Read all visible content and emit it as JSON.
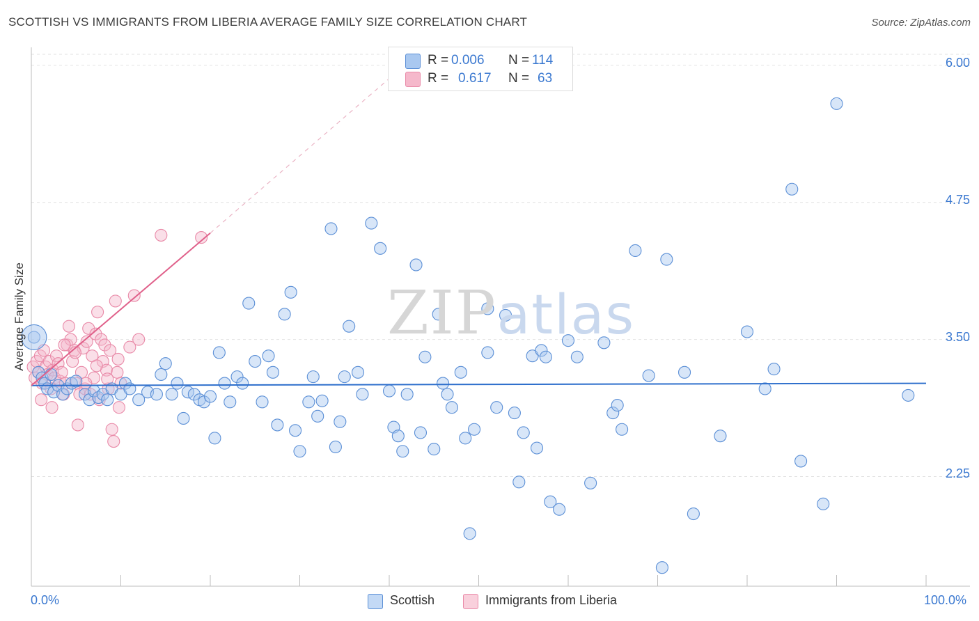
{
  "header": {
    "title": "SCOTTISH VS IMMIGRANTS FROM LIBERIA AVERAGE FAMILY SIZE CORRELATION CHART",
    "source": "Source: ZipAtlas.com"
  },
  "watermark": {
    "zip": "ZIP",
    "atlas": "atlas"
  },
  "legend_top": {
    "rows": [
      {
        "r_label": "R =",
        "r_value": "0.006",
        "n_label": "N =",
        "n_value": "114"
      },
      {
        "r_label": "R =",
        "r_value": "0.617",
        "n_label": "N =",
        "n_value": "63"
      }
    ]
  },
  "legend_bottom": {
    "items": [
      {
        "label": "Scottish"
      },
      {
        "label": "Immigrants from Liberia"
      }
    ]
  },
  "colors": {
    "blue_fill": "#a9c8f0",
    "blue_stroke": "#5b8fd6",
    "blue_line": "#2e6fcc",
    "pink_fill": "#f5b8cb",
    "pink_stroke": "#e98aa8",
    "pink_line": "#e0608a",
    "grid": "#e2e2e2",
    "axis_text": "#3a78d0"
  },
  "chart_data": {
    "type": "scatter",
    "title": "SCOTTISH VS IMMIGRANTS FROM LIBERIA AVERAGE FAMILY SIZE CORRELATION CHART",
    "xlabel": "",
    "ylabel": "Average Family Size",
    "xlim": [
      0,
      100
    ],
    "ylim": [
      1.25,
      6.1
    ],
    "x_tick_labels": [
      "0.0%",
      "100.0%"
    ],
    "y_ticks": [
      2.25,
      3.5,
      4.75,
      6.0
    ],
    "y_tick_labels": [
      "2.25",
      "3.50",
      "4.75",
      "6.00"
    ],
    "grid": true,
    "legend_position": "bottom",
    "series": [
      {
        "name": "Scottish",
        "R": 0.006,
        "N": 114,
        "trend": {
          "x": [
            0,
            100
          ],
          "y": [
            3.08,
            3.1
          ]
        },
        "points": [
          [
            0.3,
            3.52
          ],
          [
            0.8,
            3.2
          ],
          [
            1.2,
            3.15
          ],
          [
            1.5,
            3.1
          ],
          [
            1.8,
            3.05
          ],
          [
            2.2,
            3.18
          ],
          [
            2.5,
            3.02
          ],
          [
            3.0,
            3.08
          ],
          [
            3.5,
            3.0
          ],
          [
            4.0,
            3.05
          ],
          [
            4.5,
            3.1
          ],
          [
            5.0,
            3.12
          ],
          [
            6.0,
            3.0
          ],
          [
            6.5,
            2.95
          ],
          [
            7.0,
            3.03
          ],
          [
            7.5,
            2.97
          ],
          [
            8.0,
            3.0
          ],
          [
            8.5,
            2.95
          ],
          [
            9.0,
            3.05
          ],
          [
            10.0,
            3.0
          ],
          [
            10.5,
            3.1
          ],
          [
            11.0,
            3.05
          ],
          [
            12.0,
            2.95
          ],
          [
            13.0,
            3.02
          ],
          [
            14.0,
            3.0
          ],
          [
            14.5,
            3.18
          ],
          [
            15.0,
            3.28
          ],
          [
            15.7,
            3.0
          ],
          [
            16.3,
            3.1
          ],
          [
            17.0,
            2.78
          ],
          [
            17.5,
            3.02
          ],
          [
            18.2,
            3.0
          ],
          [
            18.8,
            2.95
          ],
          [
            19.3,
            2.93
          ],
          [
            20.0,
            2.98
          ],
          [
            20.5,
            2.6
          ],
          [
            21.0,
            3.38
          ],
          [
            21.6,
            3.1
          ],
          [
            22.2,
            2.93
          ],
          [
            23.0,
            3.16
          ],
          [
            23.6,
            3.1
          ],
          [
            24.3,
            3.83
          ],
          [
            25.0,
            3.3
          ],
          [
            25.8,
            2.93
          ],
          [
            26.5,
            3.35
          ],
          [
            27.0,
            3.2
          ],
          [
            27.5,
            2.72
          ],
          [
            28.3,
            3.73
          ],
          [
            29.0,
            3.93
          ],
          [
            29.5,
            2.67
          ],
          [
            30.0,
            2.48
          ],
          [
            31.0,
            2.93
          ],
          [
            31.5,
            3.16
          ],
          [
            32.0,
            2.8
          ],
          [
            32.5,
            2.94
          ],
          [
            33.5,
            4.51
          ],
          [
            34.0,
            2.52
          ],
          [
            34.5,
            2.75
          ],
          [
            35.0,
            3.16
          ],
          [
            35.5,
            3.62
          ],
          [
            36.5,
            3.2
          ],
          [
            37.0,
            3.0
          ],
          [
            38.0,
            4.56
          ],
          [
            39.0,
            4.33
          ],
          [
            40.0,
            3.03
          ],
          [
            40.5,
            2.7
          ],
          [
            41.5,
            2.48
          ],
          [
            41.0,
            2.62
          ],
          [
            42.0,
            3.0
          ],
          [
            43.0,
            4.18
          ],
          [
            43.5,
            2.65
          ],
          [
            44.0,
            3.34
          ],
          [
            45.0,
            2.5
          ],
          [
            45.5,
            3.73
          ],
          [
            46.0,
            3.1
          ],
          [
            46.5,
            3.0
          ],
          [
            47.0,
            2.88
          ],
          [
            48.0,
            3.2
          ],
          [
            48.5,
            2.6
          ],
          [
            49.0,
            1.73
          ],
          [
            49.5,
            2.68
          ],
          [
            51.0,
            3.78
          ],
          [
            51.0,
            3.38
          ],
          [
            52.0,
            2.88
          ],
          [
            53.0,
            3.72
          ],
          [
            54.0,
            2.83
          ],
          [
            54.5,
            2.2
          ],
          [
            55.0,
            2.65
          ],
          [
            56.0,
            3.35
          ],
          [
            56.5,
            2.51
          ],
          [
            57.0,
            3.4
          ],
          [
            57.5,
            3.34
          ],
          [
            58.0,
            2.02
          ],
          [
            59.0,
            1.95
          ],
          [
            60.0,
            3.49
          ],
          [
            61.0,
            3.34
          ],
          [
            62.5,
            2.19
          ],
          [
            64.0,
            3.47
          ],
          [
            65.0,
            2.83
          ],
          [
            65.5,
            2.9
          ],
          [
            66.0,
            2.68
          ],
          [
            67.5,
            4.31
          ],
          [
            69.0,
            3.17
          ],
          [
            71.0,
            4.23
          ],
          [
            73.0,
            3.2
          ],
          [
            74.0,
            1.91
          ],
          [
            77.0,
            2.62
          ],
          [
            80.0,
            3.57
          ],
          [
            82.0,
            3.05
          ],
          [
            83.0,
            3.23
          ],
          [
            85.0,
            4.87
          ],
          [
            86.0,
            2.39
          ],
          [
            88.5,
            2.0
          ],
          [
            90.0,
            5.65
          ],
          [
            70.5,
            1.42
          ],
          [
            98.0,
            2.99
          ]
        ]
      },
      {
        "name": "Immigrants from Liberia",
        "R": 0.617,
        "N": 63,
        "trend": {
          "x": [
            0,
            20
          ],
          "y": [
            3.08,
            4.47
          ],
          "dash_to": {
            "x": 42,
            "y": 6.02
          }
        },
        "points": [
          [
            0.2,
            3.25
          ],
          [
            0.4,
            3.15
          ],
          [
            0.6,
            3.3
          ],
          [
            0.8,
            3.2
          ],
          [
            1.0,
            3.35
          ],
          [
            1.2,
            3.1
          ],
          [
            1.4,
            3.4
          ],
          [
            1.6,
            3.25
          ],
          [
            1.8,
            3.18
          ],
          [
            2.0,
            3.3
          ],
          [
            2.2,
            3.05
          ],
          [
            2.4,
            3.22
          ],
          [
            2.6,
            3.15
          ],
          [
            2.8,
            3.35
          ],
          [
            3.0,
            3.28
          ],
          [
            3.2,
            3.12
          ],
          [
            3.4,
            3.2
          ],
          [
            3.6,
            3.0
          ],
          [
            3.8,
            3.1
          ],
          [
            4.0,
            3.45
          ],
          [
            4.2,
            3.62
          ],
          [
            4.4,
            3.5
          ],
          [
            4.6,
            3.3
          ],
          [
            4.8,
            3.4
          ],
          [
            5.0,
            3.1
          ],
          [
            5.2,
            2.72
          ],
          [
            5.4,
            3.0
          ],
          [
            5.6,
            3.2
          ],
          [
            5.8,
            3.42
          ],
          [
            6.0,
            3.05
          ],
          [
            6.2,
            3.48
          ],
          [
            6.4,
            3.6
          ],
          [
            6.6,
            3.0
          ],
          [
            6.8,
            3.35
          ],
          [
            7.0,
            3.15
          ],
          [
            7.2,
            3.55
          ],
          [
            7.4,
            3.75
          ],
          [
            7.6,
            2.95
          ],
          [
            7.8,
            3.5
          ],
          [
            8.0,
            3.3
          ],
          [
            8.2,
            3.45
          ],
          [
            8.4,
            3.22
          ],
          [
            8.6,
            3.05
          ],
          [
            8.8,
            3.4
          ],
          [
            9.0,
            2.68
          ],
          [
            9.2,
            2.57
          ],
          [
            9.4,
            3.85
          ],
          [
            9.6,
            3.2
          ],
          [
            9.8,
            2.88
          ],
          [
            10.0,
            3.1
          ],
          [
            11.0,
            3.43
          ],
          [
            12.0,
            3.5
          ],
          [
            14.5,
            4.45
          ],
          [
            19.0,
            4.43
          ],
          [
            1.1,
            2.95
          ],
          [
            2.3,
            2.88
          ],
          [
            3.7,
            3.45
          ],
          [
            4.9,
            3.38
          ],
          [
            6.1,
            3.1
          ],
          [
            7.3,
            3.26
          ],
          [
            8.5,
            3.14
          ],
          [
            9.7,
            3.32
          ],
          [
            11.5,
            3.9
          ]
        ]
      }
    ]
  }
}
